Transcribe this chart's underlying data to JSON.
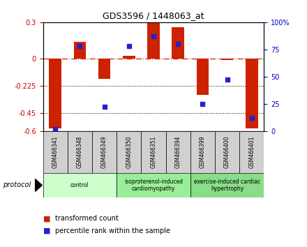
{
  "title": "GDS3596 / 1448063_at",
  "samples": [
    "GSM466341",
    "GSM466348",
    "GSM466349",
    "GSM466350",
    "GSM466351",
    "GSM466394",
    "GSM466399",
    "GSM466400",
    "GSM466401"
  ],
  "red_values": [
    -0.58,
    0.14,
    -0.17,
    0.02,
    0.3,
    0.26,
    -0.3,
    -0.01,
    -0.58
  ],
  "blue_values_pct": [
    2,
    78,
    22,
    78,
    87,
    80,
    25,
    47,
    12
  ],
  "groups": [
    {
      "label": "control",
      "start": 0,
      "end": 3,
      "color": "#ccffcc"
    },
    {
      "label": "isoproterenol-induced\ncardiomyopathy",
      "start": 3,
      "end": 6,
      "color": "#99ee99"
    },
    {
      "label": "exercise-induced cardiac\nhypertrophy",
      "start": 6,
      "end": 9,
      "color": "#88dd88"
    }
  ],
  "ylim_left": [
    -0.6,
    0.3
  ],
  "ylim_right": [
    0,
    100
  ],
  "yticks_left": [
    0.3,
    0,
    -0.225,
    -0.45,
    -0.6
  ],
  "yticks_right": [
    100,
    75,
    50,
    25,
    0
  ],
  "hlines_dotted": [
    -0.225,
    -0.45
  ],
  "left_tick_color": "#cc0000",
  "right_tick_color": "#0000cc",
  "bar_width": 0.5
}
